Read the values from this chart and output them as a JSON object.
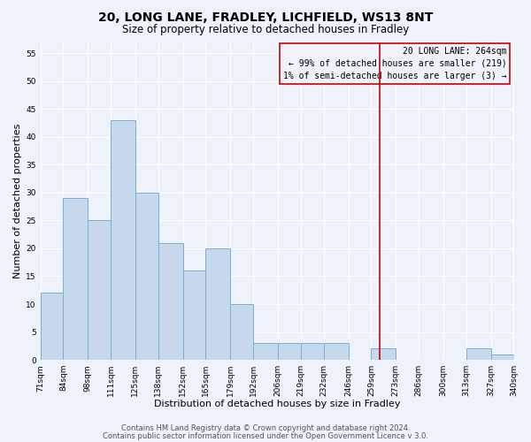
{
  "title": "20, LONG LANE, FRADLEY, LICHFIELD, WS13 8NT",
  "subtitle": "Size of property relative to detached houses in Fradley",
  "xlabel": "Distribution of detached houses by size in Fradley",
  "ylabel": "Number of detached properties",
  "bar_edges": [
    71,
    84,
    98,
    111,
    125,
    138,
    152,
    165,
    179,
    192,
    206,
    219,
    232,
    246,
    259,
    273,
    286,
    300,
    313,
    327,
    340
  ],
  "bar_heights": [
    12,
    29,
    25,
    43,
    30,
    21,
    16,
    20,
    10,
    3,
    3,
    3,
    3,
    0,
    2,
    0,
    0,
    0,
    2,
    1
  ],
  "bar_color": "#c5d8ec",
  "bar_edgecolor": "#7aafd4",
  "vline_x": 264,
  "vline_color": "#cc0000",
  "ylim": [
    0,
    57
  ],
  "yticks": [
    0,
    5,
    10,
    15,
    20,
    25,
    30,
    35,
    40,
    45,
    50,
    55
  ],
  "xtick_labels": [
    "71sqm",
    "84sqm",
    "98sqm",
    "111sqm",
    "125sqm",
    "138sqm",
    "152sqm",
    "165sqm",
    "179sqm",
    "192sqm",
    "206sqm",
    "219sqm",
    "232sqm",
    "246sqm",
    "259sqm",
    "273sqm",
    "286sqm",
    "300sqm",
    "313sqm",
    "327sqm",
    "340sqm"
  ],
  "annotation_title": "20 LONG LANE: 264sqm",
  "annotation_line1": "← 99% of detached houses are smaller (219)",
  "annotation_line2": "1% of semi-detached houses are larger (3) →",
  "annotation_box_color": "#cc0000",
  "footer1": "Contains HM Land Registry data © Crown copyright and database right 2024.",
  "footer2": "Contains public sector information licensed under the Open Government Licence v 3.0.",
  "bg_color": "#eef2fa",
  "grid_color": "#ffffff",
  "title_fontsize": 10,
  "subtitle_fontsize": 8.5,
  "axis_label_fontsize": 8,
  "tick_fontsize": 6.5,
  "annotation_fontsize": 7,
  "footer_fontsize": 6
}
